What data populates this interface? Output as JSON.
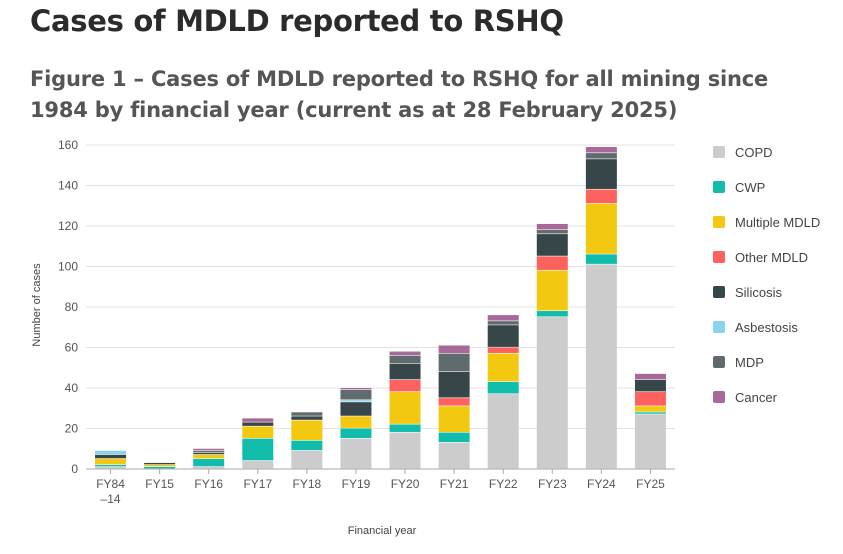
{
  "page": {
    "title": "Cases of MDLD reported to RSHQ",
    "figure_title": "Figure 1 – Cases of MDLD reported to RSHQ for all mining since 1984 by financial year (current as at 28 February 2025)"
  },
  "chart_data": {
    "type": "bar",
    "stacked": true,
    "xlabel": "Financial year",
    "ylabel": "Number of cases",
    "ylim": [
      0,
      160
    ],
    "yticks": [
      0,
      20,
      40,
      60,
      80,
      100,
      120,
      140,
      160
    ],
    "grid": "horizontal",
    "legend_position": "right",
    "categories": [
      "FY84\n–14",
      "FY15",
      "FY16",
      "FY17",
      "FY18",
      "FY19",
      "FY20",
      "FY21",
      "FY22",
      "FY23",
      "FY24",
      "FY25"
    ],
    "series": [
      {
        "name": "COPD",
        "color": "#cccccc",
        "values": [
          1,
          0,
          1,
          4,
          9,
          15,
          18,
          13,
          37,
          75,
          101,
          27
        ]
      },
      {
        "name": "CWP",
        "color": "#12bcab",
        "values": [
          1,
          1,
          4,
          11,
          5,
          5,
          4,
          5,
          6,
          3,
          5,
          1
        ]
      },
      {
        "name": "Multiple MDLD",
        "color": "#f2c811",
        "values": [
          3,
          1,
          2,
          6,
          10,
          6,
          16,
          13,
          14,
          20,
          25,
          3
        ]
      },
      {
        "name": "Other MDLD",
        "color": "#fd625e",
        "values": [
          0,
          0,
          0,
          0,
          0,
          0,
          6,
          4,
          3,
          7,
          7,
          7
        ]
      },
      {
        "name": "Silicosis",
        "color": "#374649",
        "values": [
          2,
          1,
          1,
          2,
          2,
          7,
          8,
          13,
          11,
          11,
          15,
          6
        ]
      },
      {
        "name": "Asbestosis",
        "color": "#8ad4eb",
        "values": [
          2,
          0,
          0,
          0,
          0,
          1,
          0,
          0,
          0,
          0,
          0,
          0
        ]
      },
      {
        "name": "MDP",
        "color": "#5f6b6d",
        "values": [
          0,
          0,
          1,
          0,
          2,
          5,
          4,
          9,
          2,
          2,
          3,
          0
        ]
      },
      {
        "name": "Cancer",
        "color": "#a66999",
        "values": [
          0,
          0,
          1,
          2,
          0,
          1,
          2,
          4,
          3,
          3,
          3,
          3
        ]
      }
    ]
  }
}
